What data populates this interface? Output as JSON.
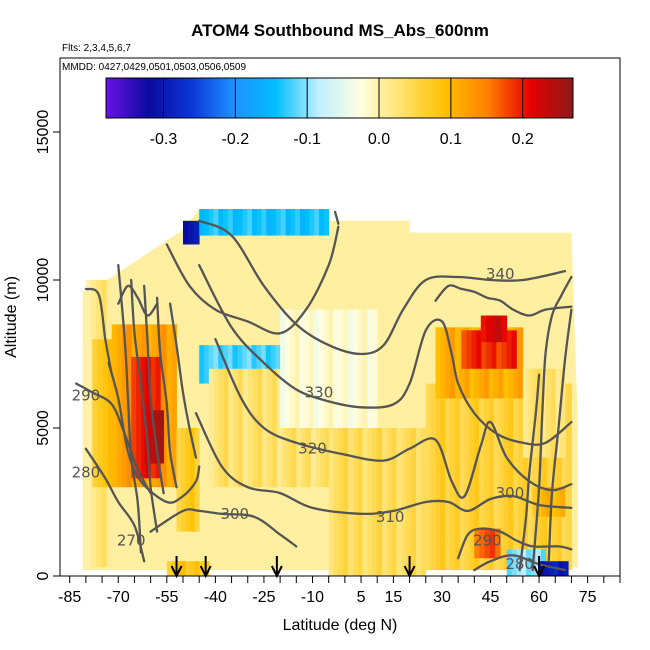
{
  "chart_data": {
    "type": "heatmap",
    "title": "ATOM4 Southbound MS_Abs_600nm",
    "flights_text": "Flts: 2,3,4,5,6,7",
    "dates_text": "MMDD: 0427,0429,0501,0503,0506,0509",
    "xlabel": "Latitude (deg N)",
    "ylabel": "Altitude (m)",
    "xlim": [
      -88,
      85
    ],
    "ylim": [
      0,
      17500
    ],
    "x_ticks": [
      -85,
      -70,
      -55,
      -40,
      -25,
      -10,
      5,
      15,
      30,
      45,
      60,
      75
    ],
    "y_ticks": [
      0,
      5000,
      10000,
      15000
    ],
    "colorbar": {
      "range": [
        -0.38,
        0.27
      ],
      "ticks": [
        -0.3,
        -0.2,
        -0.1,
        0.0,
        0.1,
        0.2
      ],
      "tick_labels": [
        "-0.3",
        "-0.2",
        "-0.1",
        "0.0",
        "0.1",
        "0.2"
      ],
      "colors": [
        "#6b12e8",
        "#0a0a9e",
        "#0a35d6",
        "#1e90ff",
        "#00bfff",
        "#bfefff",
        "#ffffe0",
        "#ffe066",
        "#ffc000",
        "#ff7f00",
        "#e60000",
        "#8b1a1a"
      ]
    },
    "contour_labels": [
      {
        "text": "340",
        "lat": 48,
        "alt": 10200
      },
      {
        "text": "330",
        "lat": -8,
        "alt": 6200
      },
      {
        "text": "320",
        "lat": -10,
        "alt": 4300
      },
      {
        "text": "310",
        "lat": 14,
        "alt": 2000
      },
      {
        "text": "300",
        "lat": -34,
        "alt": 2100
      },
      {
        "text": "300",
        "lat": 51,
        "alt": 2800
      },
      {
        "text": "290",
        "lat": -80,
        "alt": 6100
      },
      {
        "text": "290",
        "lat": 44,
        "alt": 1200
      },
      {
        "text": "280",
        "lat": -80,
        "alt": 3500
      },
      {
        "text": "280",
        "lat": 54,
        "alt": 400
      },
      {
        "text": "270",
        "lat": -66,
        "alt": 1200
      }
    ],
    "profile_arrows_lat": [
      -52,
      -43,
      -21,
      20,
      60
    ],
    "cells": [
      {
        "lat": [
          -80,
          -72
        ],
        "alt": [
          300,
          10000
        ],
        "v": 0.02
      },
      {
        "lat": [
          -78,
          -70
        ],
        "alt": [
          3000,
          8000
        ],
        "v": 0.08
      },
      {
        "lat": [
          -72,
          -52
        ],
        "alt": [
          3000,
          8500
        ],
        "v": 0.12
      },
      {
        "lat": [
          -66,
          -57
        ],
        "alt": [
          3300,
          7400
        ],
        "v": 0.2
      },
      {
        "lat": [
          -62,
          -56
        ],
        "alt": [
          3800,
          5600
        ],
        "v": 0.24
      },
      {
        "lat": [
          -52,
          -45
        ],
        "alt": [
          1500,
          5000
        ],
        "v": 0.07
      },
      {
        "lat": [
          -50,
          -45
        ],
        "alt": [
          11200,
          12000
        ],
        "v": -0.3
      },
      {
        "lat": [
          -45,
          -5
        ],
        "alt": [
          11500,
          12400
        ],
        "v": -0.14
      },
      {
        "lat": [
          -45,
          -20
        ],
        "alt": [
          6500,
          7800
        ],
        "v": -0.12
      },
      {
        "lat": [
          -42,
          0
        ],
        "alt": [
          3000,
          7000
        ],
        "v": 0.03
      },
      {
        "lat": [
          -20,
          10
        ],
        "alt": [
          5000,
          9000
        ],
        "v": -0.02
      },
      {
        "lat": [
          -5,
          25
        ],
        "alt": [
          0,
          5000
        ],
        "v": 0.04
      },
      {
        "lat": [
          25,
          70
        ],
        "alt": [
          200,
          6500
        ],
        "v": 0.06
      },
      {
        "lat": [
          28,
          55
        ],
        "alt": [
          6000,
          8400
        ],
        "v": 0.11
      },
      {
        "lat": [
          36,
          53
        ],
        "alt": [
          7000,
          8300
        ],
        "v": 0.19
      },
      {
        "lat": [
          42,
          50
        ],
        "alt": [
          7900,
          8800
        ],
        "v": 0.22
      },
      {
        "lat": [
          55,
          68
        ],
        "alt": [
          4000,
          7000
        ],
        "v": 0.03
      },
      {
        "lat": [
          58,
          68
        ],
        "alt": [
          2000,
          3000
        ],
        "v": 0.1
      },
      {
        "lat": [
          40,
          48
        ],
        "alt": [
          600,
          1600
        ],
        "v": 0.17
      },
      {
        "lat": [
          50,
          62
        ],
        "alt": [
          0,
          900
        ],
        "v": -0.1
      },
      {
        "lat": [
          60,
          69
        ],
        "alt": [
          0,
          500
        ],
        "v": -0.3
      },
      {
        "lat": [
          -55,
          -42
        ],
        "alt": [
          0,
          500
        ],
        "v": 0.08
      }
    ]
  }
}
